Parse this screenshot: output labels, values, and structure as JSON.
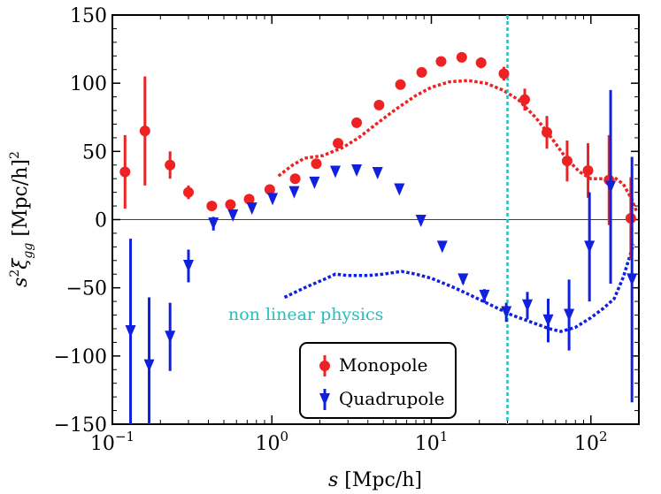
{
  "chart_data": {
    "type": "scatter",
    "title": "",
    "xscale": "log",
    "xlim": [
      0.1,
      200
    ],
    "ylim": [
      -150,
      150
    ],
    "xlabel": {
      "var": "s",
      "unit": " [Mpc/h]"
    },
    "ylabel": {
      "pre": "s",
      "sup": "2",
      "xi": "ξ",
      "sub": "gg",
      "unit": " [Mpc/h]",
      "unit_sup": "2"
    },
    "x_ticks": [
      {
        "value": 0.1,
        "base": "10",
        "exp": "−1"
      },
      {
        "value": 1,
        "base": "10",
        "exp": "0"
      },
      {
        "value": 10,
        "base": "10",
        "exp": "1"
      },
      {
        "value": 100,
        "base": "10",
        "exp": "2"
      }
    ],
    "y_ticks": [
      {
        "value": -150,
        "label": "−150"
      },
      {
        "value": -100,
        "label": "−100"
      },
      {
        "value": -50,
        "label": "−50"
      },
      {
        "value": 0,
        "label": "0"
      },
      {
        "value": 50,
        "label": "50"
      },
      {
        "value": 100,
        "label": "100"
      },
      {
        "value": 150,
        "label": "150"
      }
    ],
    "annotation": {
      "text": "non linear physics",
      "x": 30,
      "color": "#20c0c0"
    },
    "legend": {
      "position": "lower-center",
      "entries": [
        "Monopole",
        "Quadrupole"
      ]
    },
    "series": [
      {
        "name": "Monopole",
        "color": "#ee2222",
        "marker": "circle",
        "points": [
          {
            "x": 0.12,
            "y": 35,
            "err": 27
          },
          {
            "x": 0.16,
            "y": 65,
            "err": 40
          },
          {
            "x": 0.23,
            "y": 40,
            "err": 10
          },
          {
            "x": 0.3,
            "y": 20,
            "err": 5
          },
          {
            "x": 0.42,
            "y": 10,
            "err": 2
          },
          {
            "x": 0.55,
            "y": 11,
            "err": 2
          },
          {
            "x": 0.72,
            "y": 15,
            "err": 2
          },
          {
            "x": 0.97,
            "y": 22,
            "err": 2
          },
          {
            "x": 1.4,
            "y": 30,
            "err": 2
          },
          {
            "x": 1.9,
            "y": 41,
            "err": 2
          },
          {
            "x": 2.6,
            "y": 56,
            "err": 2
          },
          {
            "x": 3.4,
            "y": 71,
            "err": 2
          },
          {
            "x": 4.7,
            "y": 84,
            "err": 2
          },
          {
            "x": 6.4,
            "y": 99,
            "err": 2
          },
          {
            "x": 8.7,
            "y": 108,
            "err": 2
          },
          {
            "x": 11.5,
            "y": 116,
            "err": 2
          },
          {
            "x": 15.5,
            "y": 119,
            "err": 3
          },
          {
            "x": 20.5,
            "y": 115,
            "err": 4
          },
          {
            "x": 28.5,
            "y": 107,
            "err": 5
          },
          {
            "x": 38.5,
            "y": 88,
            "err": 8
          },
          {
            "x": 53,
            "y": 64,
            "err": 12
          },
          {
            "x": 71,
            "y": 43,
            "err": 15
          },
          {
            "x": 96,
            "y": 36,
            "err": 20
          },
          {
            "x": 130,
            "y": 29,
            "err": 33
          },
          {
            "x": 178,
            "y": 1,
            "err": 30
          }
        ],
        "model": [
          [
            1.1,
            32
          ],
          [
            1.35,
            40
          ],
          [
            1.6,
            45
          ],
          [
            2.1,
            47
          ],
          [
            2.8,
            53
          ],
          [
            3.5,
            60
          ],
          [
            4.5,
            70
          ],
          [
            6.0,
            81
          ],
          [
            8.0,
            91
          ],
          [
            10,
            97
          ],
          [
            13,
            101
          ],
          [
            17,
            102
          ],
          [
            22,
            100
          ],
          [
            28,
            95
          ],
          [
            35,
            88
          ],
          [
            45,
            75
          ],
          [
            55,
            62
          ],
          [
            70,
            45
          ],
          [
            85,
            35
          ],
          [
            100,
            30
          ],
          [
            120,
            30
          ],
          [
            140,
            31
          ],
          [
            160,
            26
          ],
          [
            180,
            15
          ],
          [
            195,
            5
          ]
        ]
      },
      {
        "name": "Quadrupole",
        "color": "#1020dd",
        "marker": "triangle-down",
        "points": [
          {
            "x": 0.13,
            "y": -82,
            "err": 68
          },
          {
            "x": 0.17,
            "y": -107,
            "err": 50
          },
          {
            "x": 0.23,
            "y": -86,
            "err": 25
          },
          {
            "x": 0.3,
            "y": -34,
            "err": 12
          },
          {
            "x": 0.43,
            "y": -3,
            "err": 5
          },
          {
            "x": 0.57,
            "y": 3,
            "err": 3
          },
          {
            "x": 0.75,
            "y": 8,
            "err": 2
          },
          {
            "x": 1.01,
            "y": 15,
            "err": 2
          },
          {
            "x": 1.38,
            "y": 20,
            "err": 2
          },
          {
            "x": 1.85,
            "y": 27,
            "err": 2
          },
          {
            "x": 2.5,
            "y": 35,
            "err": 2
          },
          {
            "x": 3.4,
            "y": 36,
            "err": 2
          },
          {
            "x": 4.6,
            "y": 34,
            "err": 2
          },
          {
            "x": 6.3,
            "y": 22,
            "err": 2
          },
          {
            "x": 8.6,
            "y": -1,
            "err": 2
          },
          {
            "x": 11.7,
            "y": -20,
            "err": 2
          },
          {
            "x": 15.8,
            "y": -44,
            "err": 3
          },
          {
            "x": 21.5,
            "y": -56,
            "err": 5
          },
          {
            "x": 29.5,
            "y": -68,
            "err": 7
          },
          {
            "x": 40,
            "y": -63,
            "err": 10
          },
          {
            "x": 54,
            "y": -74,
            "err": 16
          },
          {
            "x": 73,
            "y": -70,
            "err": 26
          },
          {
            "x": 98,
            "y": -20,
            "err": 40
          },
          {
            "x": 133,
            "y": 24,
            "err": 71
          },
          {
            "x": 181,
            "y": -44,
            "err": 90
          }
        ],
        "model": [
          [
            1.2,
            -57
          ],
          [
            1.6,
            -50
          ],
          [
            2.2,
            -43
          ],
          [
            2.5,
            -40
          ],
          [
            3.0,
            -41
          ],
          [
            4.0,
            -41
          ],
          [
            5.0,
            -40
          ],
          [
            6.5,
            -38
          ],
          [
            8.0,
            -40
          ],
          [
            10,
            -43
          ],
          [
            14,
            -50
          ],
          [
            18,
            -56
          ],
          [
            25,
            -64
          ],
          [
            32,
            -70
          ],
          [
            42,
            -75
          ],
          [
            55,
            -80
          ],
          [
            65,
            -82
          ],
          [
            80,
            -79
          ],
          [
            100,
            -72
          ],
          [
            120,
            -65
          ],
          [
            140,
            -58
          ],
          [
            160,
            -42
          ],
          [
            185,
            -18
          ]
        ]
      }
    ]
  }
}
